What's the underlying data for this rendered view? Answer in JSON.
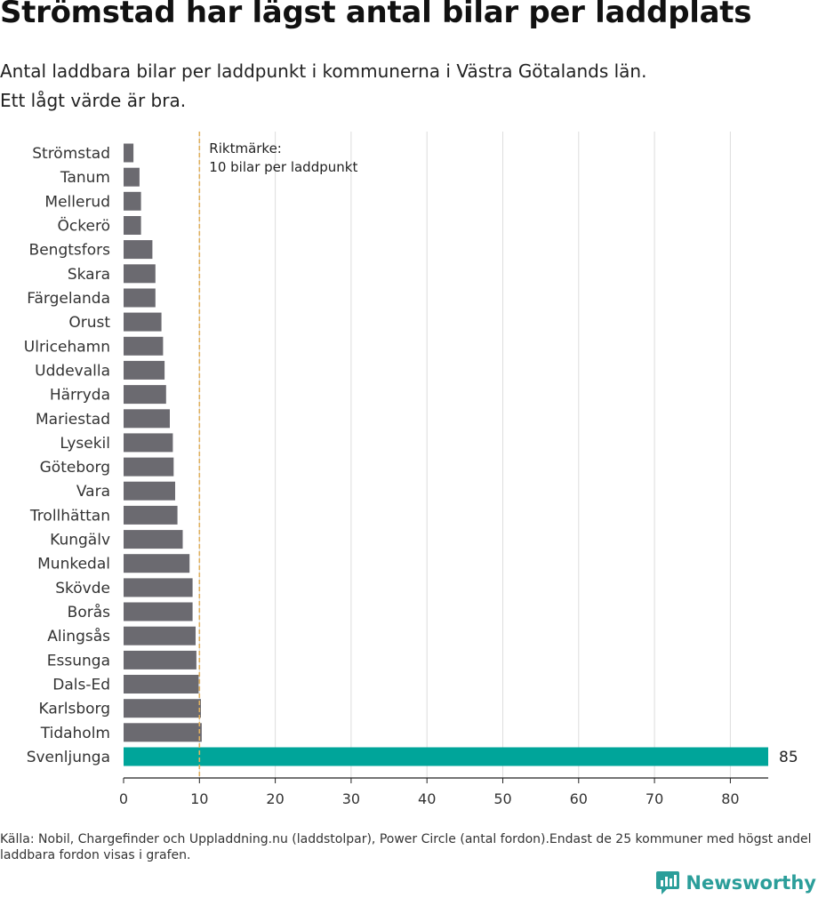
{
  "title": "Strömstad har lägst antal bilar per laddplats",
  "subtitle_lines": [
    "Antal laddbara bilar per laddpunkt i kommunerna i Västra Götalands län.",
    "Ett lågt värde är bra."
  ],
  "footer": {
    "source": "Källa: Nobil, Chargefinder och Uppladdning.nu (laddstolpar), Power Circle (antal fordon).Endast de 25 kommuner med högst andel laddbara fordon visas i grafen.",
    "brand": "Newsworthy"
  },
  "colors": {
    "bar": "#6b6a70",
    "highlight": "#00a59a",
    "reference_line": "#e0b160",
    "grid": "#dddddd",
    "brand": "#2b9e9a"
  },
  "icons": {
    "brand_logo": "newsworthy-logo-icon"
  },
  "chart_data": {
    "type": "bar",
    "orientation": "horizontal",
    "categories": [
      "Strömstad",
      "Tanum",
      "Mellerud",
      "Öckerö",
      "Bengtsfors",
      "Skara",
      "Färgelanda",
      "Orust",
      "Ulricehamn",
      "Uddevalla",
      "Härryda",
      "Mariestad",
      "Lysekil",
      "Göteborg",
      "Vara",
      "Trollhättan",
      "Kungälv",
      "Munkedal",
      "Skövde",
      "Borås",
      "Alingsås",
      "Essunga",
      "Dals-Ed",
      "Karlsborg",
      "Tidaholm",
      "Svenljunga"
    ],
    "values": [
      1.3,
      2.1,
      2.3,
      2.3,
      3.8,
      4.2,
      4.2,
      5.0,
      5.2,
      5.4,
      5.6,
      6.1,
      6.5,
      6.6,
      6.8,
      7.1,
      7.8,
      8.7,
      9.1,
      9.1,
      9.5,
      9.6,
      9.9,
      10.2,
      10.3,
      85
    ],
    "highlight": "Svenljunga",
    "value_labels": [
      {
        "category": "Svenljunga",
        "text": "85"
      }
    ],
    "xlim": [
      0,
      85
    ],
    "xticks": [
      0,
      10,
      20,
      30,
      40,
      50,
      60,
      70,
      80
    ],
    "grid": true,
    "xlabel": "",
    "ylabel": "",
    "reference_line": {
      "value": 10,
      "label_lines": [
        "Riktmärke:",
        "10 bilar per laddpunkt"
      ]
    }
  }
}
